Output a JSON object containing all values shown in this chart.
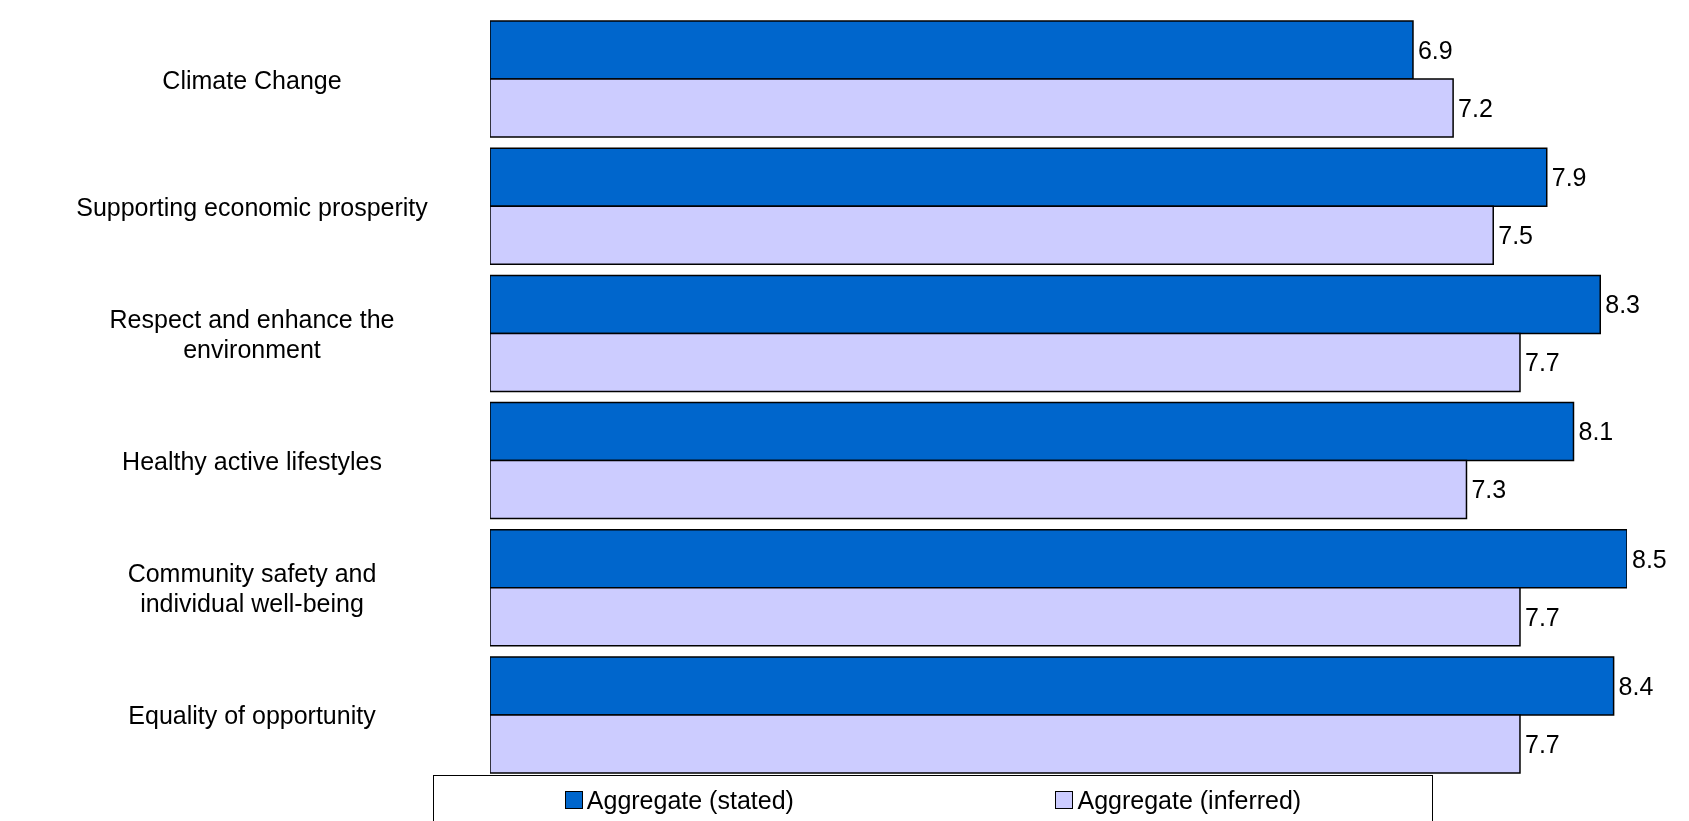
{
  "chart_data": {
    "type": "bar",
    "orientation": "horizontal",
    "data_labels": true,
    "legend": "bottom",
    "categories": [
      "Climate Change",
      "Supporting economic prosperity",
      "Respect and enhance the environment",
      "Healthy active lifestyles",
      "Community safety and individual well-being",
      "Equality of opportunity"
    ],
    "series": [
      {
        "name": "Aggregate (stated)",
        "color": "#0066cc",
        "values": [
          6.9,
          7.9,
          8.3,
          8.1,
          8.5,
          8.4
        ]
      },
      {
        "name": "Aggregate (inferred)",
        "color": "#ccccff",
        "values": [
          7.2,
          7.5,
          7.7,
          7.3,
          7.7,
          7.7
        ]
      }
    ]
  }
}
